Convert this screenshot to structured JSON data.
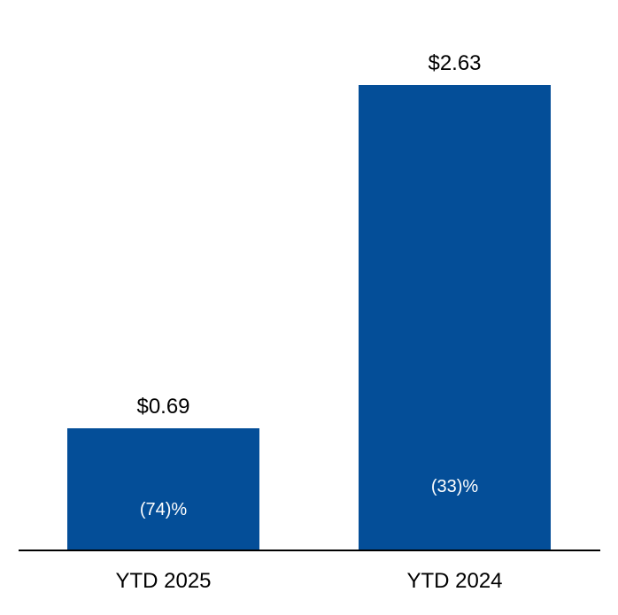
{
  "colors": {
    "bar": "#044e98",
    "axis": "#000000",
    "inner_text": "#ffffff"
  },
  "chart_data": {
    "type": "bar",
    "categories": [
      "YTD 2025",
      "YTD 2024"
    ],
    "values": [
      0.69,
      2.63
    ],
    "value_labels": [
      "$0.69",
      "$2.63"
    ],
    "inner_labels": [
      "(74)%",
      "(33)%"
    ],
    "ylim": [
      0,
      2.63
    ],
    "grid": false,
    "legend": "none"
  }
}
